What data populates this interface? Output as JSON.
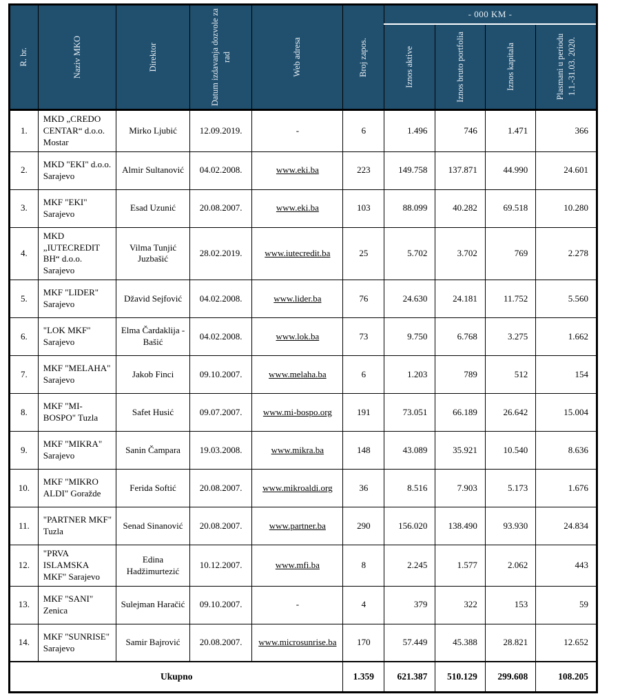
{
  "table": {
    "km_band_label": "- 000 KM -",
    "columns": [
      "R. br.",
      "Naziv MKO",
      "Direktor",
      "Datum izdavanja dozvole za rad",
      "Web adresa",
      "Broj zapos.",
      "Iznos aktive",
      "Iznos bruto portfolia",
      "Iznos kapitala",
      "Plasmani u periodu 1.1.-31.03. 2020."
    ],
    "rows": [
      {
        "num": "1.",
        "name": "MKD „CREDO CENTAR“ d.o.o. Mostar",
        "director": "Mirko Ljubić",
        "date": "12.09.2019.",
        "web": "-",
        "emp": "6",
        "aktiva": "1.496",
        "bruto": "746",
        "kapital": "1.471",
        "plasman": "366"
      },
      {
        "num": "2.",
        "name": "MKD \"EKI\" d.o.o. Sarajevo",
        "director": "Almir Sultanović",
        "date": "04.02.2008.",
        "web": "www.eki.ba",
        "emp": "223",
        "aktiva": "149.758",
        "bruto": "137.871",
        "kapital": "44.990",
        "plasman": "24.601"
      },
      {
        "num": "3.",
        "name": "MKF \"EKI\" Sarajevo",
        "director": "Esad Uzunić",
        "date": "20.08.2007.",
        "web": "www.eki.ba",
        "emp": "103",
        "aktiva": "88.099",
        "bruto": "40.282",
        "kapital": "69.518",
        "plasman": "10.280"
      },
      {
        "num": "4.",
        "name": "MKD „IUTECREDIT BH“ d.o.o. Sarajevo",
        "director": "Vilma Tunjić Juzbašić",
        "date": "28.02.2019.",
        "web": "www.iutecredit.ba",
        "emp": "25",
        "aktiva": "5.702",
        "bruto": "3.702",
        "kapital": "769",
        "plasman": "2.278"
      },
      {
        "num": "5.",
        "name": "MKF \"LIDER\" Sarajevo",
        "director": "Džavid Sejfović",
        "date": "04.02.2008.",
        "web": "www.lider.ba",
        "emp": "76",
        "aktiva": "24.630",
        "bruto": "24.181",
        "kapital": "11.752",
        "plasman": "5.560"
      },
      {
        "num": "6.",
        "name": "\"LOK MKF\" Sarajevo",
        "director": "Elma Čardaklija - Bašić",
        "date": "04.02.2008.",
        "web": "www.lok.ba",
        "emp": "73",
        "aktiva": "9.750",
        "bruto": "6.768",
        "kapital": "3.275",
        "plasman": "1.662"
      },
      {
        "num": "7.",
        "name": "MKF \"MELAHA\" Sarajevo",
        "director": "Jakob Finci",
        "date": "09.10.2007.",
        "web": "www.melaha.ba",
        "emp": "6",
        "aktiva": "1.203",
        "bruto": "789",
        "kapital": "512",
        "plasman": "154"
      },
      {
        "num": "8.",
        "name": "MKF \"MI-BOSPO\" Tuzla",
        "director": "Safet Husić",
        "date": "09.07.2007.",
        "web": "www.mi-bospo.org",
        "emp": "191",
        "aktiva": "73.051",
        "bruto": "66.189",
        "kapital": "26.642",
        "plasman": "15.004"
      },
      {
        "num": "9.",
        "name": "MKF \"MIKRA\" Sarajevo",
        "director": "Sanin Čampara",
        "date": "19.03.2008.",
        "web": "www.mikra.ba",
        "emp": "148",
        "aktiva": "43.089",
        "bruto": "35.921",
        "kapital": "10.540",
        "plasman": "8.636"
      },
      {
        "num": "10.",
        "name": "MKF \"MIKRO ALDI\" Goražde",
        "director": "Ferida Softić",
        "date": "20.08.2007.",
        "web": "www.mikroaldi.org",
        "emp": "36",
        "aktiva": "8.516",
        "bruto": "7.903",
        "kapital": "5.173",
        "plasman": "1.676"
      },
      {
        "num": "11.",
        "name": "\"PARTNER MKF\" Tuzla",
        "director": "Senad Sinanović",
        "date": "20.08.2007.",
        "web": "www.partner.ba",
        "emp": "290",
        "aktiva": "156.020",
        "bruto": "138.490",
        "kapital": "93.930",
        "plasman": "24.834"
      },
      {
        "num": "12.",
        "name": "\"PRVA ISLAMSKA MKF\" Sarajevo",
        "director": "Edina Hadžimurtezić",
        "date": "10.12.2007.",
        "web": "www.mfi.ba",
        "emp": "8",
        "aktiva": "2.245",
        "bruto": "1.577",
        "kapital": "2.062",
        "plasman": "443"
      },
      {
        "num": "13.",
        "name": "MKF \"SANI\" Zenica",
        "director": "Sulejman Haračić",
        "date": "09.10.2007.",
        "web": "-",
        "emp": "4",
        "aktiva": "379",
        "bruto": "322",
        "kapital": "153",
        "plasman": "59"
      },
      {
        "num": "14.",
        "name": "MKF \"SUNRISE\" Sarajevo",
        "director": "Samir Bajrović",
        "date": "20.08.2007.",
        "web": "www.microsunrise.ba",
        "emp": "170",
        "aktiva": "57.449",
        "bruto": "45.388",
        "kapital": "28.821",
        "plasman": "12.652"
      }
    ],
    "total": {
      "label": "Ukupno",
      "emp": "1.359",
      "aktiva": "621.387",
      "bruto": "510.129",
      "kapital": "299.608",
      "plasman": "108.205"
    }
  },
  "colors": {
    "header_bg": "#21506f",
    "header_text": "#e9eff5",
    "border": "#000000"
  }
}
